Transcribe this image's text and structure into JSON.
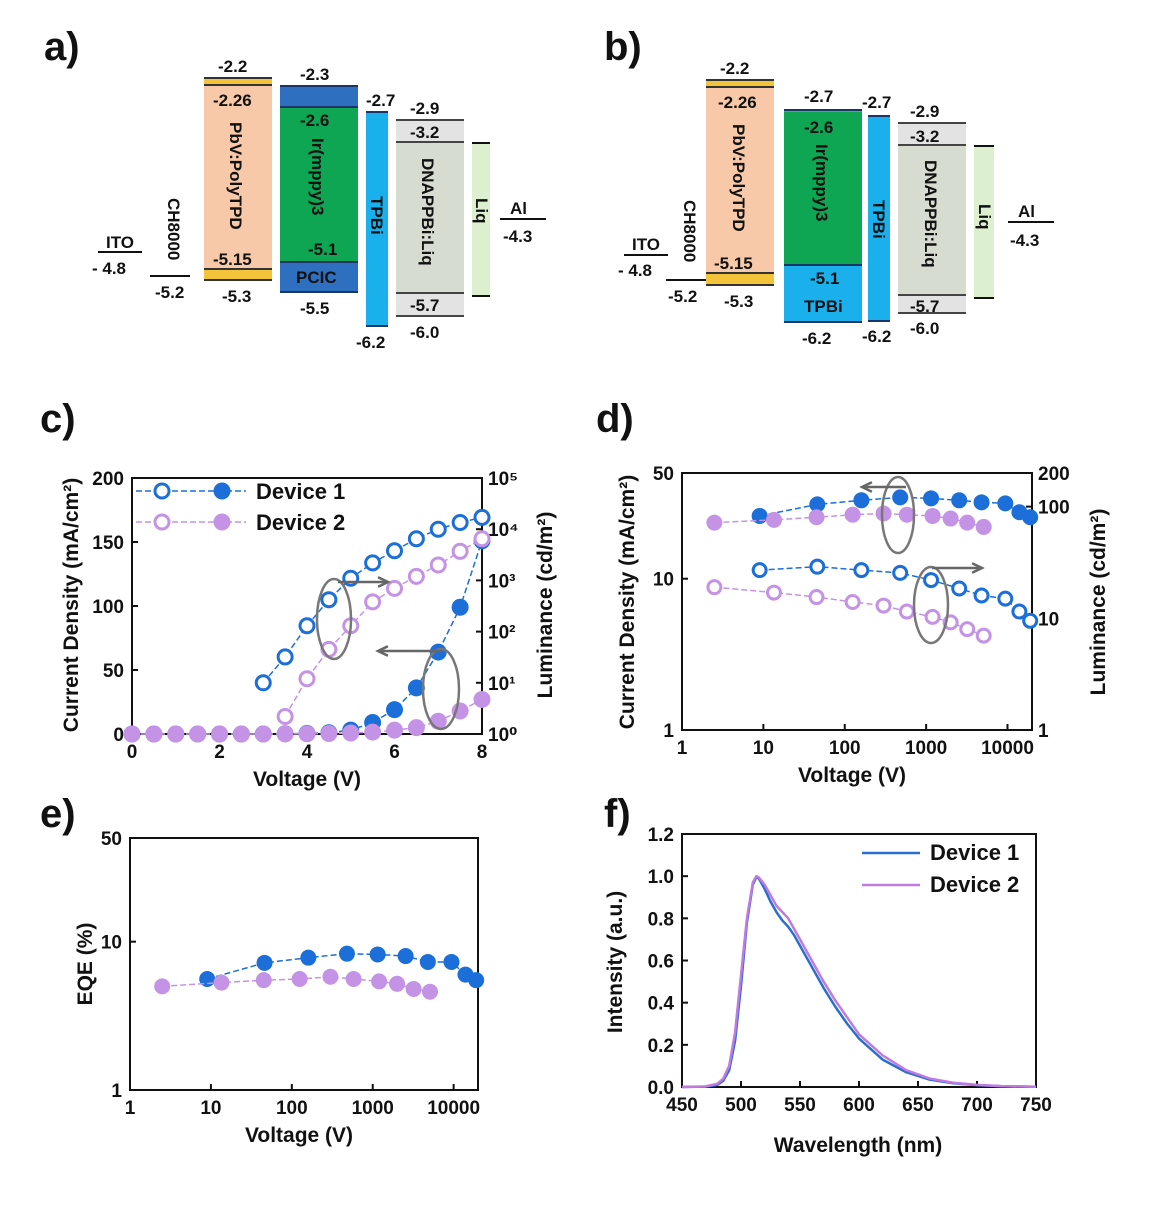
{
  "panel_labels": [
    "a)",
    "b)",
    "c)",
    "d)",
    "e)",
    "f)"
  ],
  "energy_diagrams": [
    {
      "panel": "a)",
      "layers": [
        {
          "label": "ITO",
          "color": "#ffffff",
          "levels": [
            "- 4.8"
          ]
        },
        {
          "label": "CH8000",
          "color": "#ffffff",
          "levels": [
            "-5.2"
          ]
        },
        {
          "label": "PbV:PolyTPD",
          "color": "#f7c9a8",
          "stripe": "#f3c33a",
          "levels": [
            "-2.2",
            "-2.26",
            "-5.15",
            "-5.3"
          ]
        },
        {
          "label": "Ir(mppy)3",
          "color": "#0ea553",
          "levels": [
            "-2.6",
            "-5.1"
          ]
        },
        {
          "label": "PCIC",
          "color": "#2e6fc0",
          "levels": [
            "-2.3",
            "-5.5"
          ]
        },
        {
          "label": "TPBi",
          "color": "#1ab0ec",
          "levels": [
            "-2.7",
            "-6.2"
          ]
        },
        {
          "label": "DNAPPBi:Liq",
          "color": "#d7dcd1",
          "stripe": "#e3e3e3",
          "levels": [
            "-2.9",
            "-3.2",
            "-5.7",
            "-6.0"
          ]
        },
        {
          "label": "Liq",
          "color": "#dcefcf",
          "levels": []
        },
        {
          "label": "Al",
          "color": "#ffffff",
          "levels": [
            "-4.3"
          ]
        }
      ]
    },
    {
      "panel": "b)",
      "layers": [
        {
          "label": "ITO",
          "color": "#ffffff",
          "levels": [
            "- 4.8"
          ]
        },
        {
          "label": "CH8000",
          "color": "#ffffff",
          "levels": [
            "-5.2"
          ]
        },
        {
          "label": "PbV:PolyTPD",
          "color": "#f7c9a8",
          "stripe": "#f3c33a",
          "levels": [
            "-2.2",
            "-2.26",
            "-5.15",
            "-5.3"
          ]
        },
        {
          "label": "Ir(mppy)3",
          "color": "#0ea553",
          "levels": [
            "-2.7",
            "-2.6",
            "-5.1"
          ]
        },
        {
          "label": "TPBi",
          "color": "#1ab0ec",
          "levels": [
            "-6.2"
          ]
        },
        {
          "label": "TPBi",
          "color": "#1ab0ec",
          "levels": [
            "-2.7",
            "-6.2"
          ]
        },
        {
          "label": "DNAPPBi:Liq",
          "color": "#d7dcd1",
          "stripe": "#e3e3e3",
          "levels": [
            "-2.9",
            "-3.2",
            "-5.7",
            "-6.0"
          ]
        },
        {
          "label": "Liq",
          "color": "#dcefcf",
          "levels": []
        },
        {
          "label": "Al",
          "color": "#ffffff",
          "levels": [
            "-4.3"
          ]
        }
      ]
    }
  ],
  "chart_data": [
    {
      "panel": "c)",
      "type": "scatter",
      "xlabel": "Voltage (V)",
      "ylabel": "Current Density (mA/cm²)",
      "ylabel_right": "Luminance (cd/m²)",
      "xlim": [
        0,
        8
      ],
      "ylim": [
        0,
        200
      ],
      "ylim_right": [
        1,
        100000
      ],
      "yscale_right": "log",
      "xticks": [
        "0",
        "2",
        "4",
        "6",
        "8"
      ],
      "yticks": [
        "0",
        "50",
        "100",
        "150",
        "200"
      ],
      "yticks_right": [
        "10⁰",
        "10¹",
        "10²",
        "10³",
        "10⁴",
        "10⁵"
      ],
      "legend": [
        "Device 1",
        "Device 2"
      ],
      "legend_position": "top-left",
      "series": [
        {
          "name": "Device 1",
          "axis": "left",
          "marker": "filled",
          "color": "#1c6fd8",
          "x": [
            0,
            0.5,
            1,
            1.5,
            2,
            2.5,
            3,
            3.5,
            4,
            4.5,
            5,
            5.5,
            6,
            6.5,
            7,
            7.5,
            8
          ],
          "y": [
            0,
            0,
            0,
            0,
            0,
            0,
            0,
            0.2,
            0.5,
            1,
            3,
            9,
            19,
            36,
            64,
            99,
            151
          ]
        },
        {
          "name": "Device 1",
          "axis": "right",
          "marker": "open",
          "color": "#1c6fd8",
          "x": [
            3,
            3.5,
            4,
            4.5,
            5,
            5.5,
            6,
            6.5,
            7,
            7.5,
            8
          ],
          "y": [
            10,
            32,
            130,
            420,
            1100,
            2200,
            3800,
            6500,
            10000,
            13500,
            17000
          ]
        },
        {
          "name": "Device 2",
          "axis": "left",
          "marker": "filled",
          "color": "#c493e6",
          "x": [
            0,
            0.5,
            1,
            1.5,
            2,
            2.5,
            3,
            3.5,
            4,
            4.5,
            5,
            5.5,
            6,
            6.5,
            7,
            7.5,
            8
          ],
          "y": [
            0,
            0,
            0,
            0,
            0,
            0,
            0,
            0.1,
            0.2,
            0.4,
            0.8,
            1.5,
            3,
            5,
            10,
            18,
            27
          ]
        },
        {
          "name": "Device 2",
          "axis": "right",
          "marker": "open",
          "color": "#c493e6",
          "x": [
            3.5,
            4,
            4.5,
            5,
            5.5,
            6,
            6.5,
            7,
            7.5,
            8
          ],
          "y": [
            2.2,
            12,
            45,
            130,
            380,
            700,
            1200,
            2000,
            3700,
            6500
          ]
        }
      ],
      "annotations": [
        "arrow-right",
        "arrow-left"
      ]
    },
    {
      "panel": "d)",
      "type": "scatter",
      "xlabel": "Voltage (V)",
      "ylabel": "Current Density (mA/cm²)",
      "ylabel_right": "Luminance (cd/m²)",
      "xscale": "log",
      "yscale": "log",
      "xlim": [
        1,
        20000
      ],
      "ylim": [
        1,
        50
      ],
      "ylim_right": [
        1,
        200
      ],
      "xticks": [
        "1",
        "10",
        "100",
        "1000",
        "10000"
      ],
      "yticks": [
        "1",
        "10",
        "50"
      ],
      "yticks_right": [
        "1",
        "10",
        "100",
        "200"
      ],
      "series": [
        {
          "name": "Device 1",
          "axis": "left",
          "marker": "filled",
          "color": "#1c6fd8",
          "x": [
            9,
            46,
            160,
            480,
            1150,
            2550,
            4800,
            9400,
            14000,
            19000
          ],
          "y": [
            26,
            31,
            33,
            34.5,
            34,
            33,
            32,
            31.5,
            27.5,
            25.5
          ]
        },
        {
          "name": "Device 2",
          "axis": "left",
          "marker": "filled",
          "color": "#c493e6",
          "x": [
            2.5,
            13.5,
            45,
            125,
            300,
            580,
            1200,
            2000,
            3200,
            5100
          ],
          "y": [
            23.5,
            24.5,
            25.5,
            26.5,
            27,
            26.5,
            26,
            25,
            23.5,
            22
          ]
        },
        {
          "name": "Device 1",
          "axis": "right",
          "marker": "open",
          "color": "#1c6fd8",
          "x": [
            9,
            46,
            160,
            480,
            1150,
            2550,
            4800,
            9400,
            14000,
            19000
          ],
          "y": [
            27,
            29,
            27,
            25.5,
            22,
            18.5,
            16,
            15,
            11.5,
            9.5
          ]
        },
        {
          "name": "Device 2",
          "axis": "right",
          "marker": "open",
          "color": "#c493e6",
          "x": [
            2.5,
            13.5,
            45,
            125,
            300,
            580,
            1200,
            2000,
            3200,
            5100
          ],
          "y": [
            19,
            17,
            15.5,
            14,
            13,
            11.5,
            10.3,
            9.2,
            8,
            7
          ]
        }
      ],
      "annotations": [
        "arrow-left",
        "arrow-right"
      ]
    },
    {
      "panel": "e)",
      "type": "scatter",
      "xlabel": "Voltage (V)",
      "ylabel": "EQE (%)",
      "xscale": "log",
      "yscale": "log",
      "xlim": [
        1,
        20000
      ],
      "ylim": [
        1,
        50
      ],
      "xticks": [
        "1",
        "10",
        "100",
        "1000",
        "10000"
      ],
      "yticks": [
        "1",
        "10",
        "50"
      ],
      "series": [
        {
          "name": "Device 1",
          "marker": "filled",
          "color": "#1c6fd8",
          "x": [
            9,
            46,
            160,
            480,
            1150,
            2550,
            4800,
            9400,
            14000,
            19000
          ],
          "y": [
            5.6,
            7.2,
            7.8,
            8.3,
            8.2,
            8.0,
            7.3,
            7.3,
            6.0,
            5.5
          ]
        },
        {
          "name": "Device 2",
          "marker": "filled",
          "color": "#c493e6",
          "x": [
            2.5,
            13.5,
            45,
            125,
            300,
            580,
            1200,
            2000,
            3200,
            5100
          ],
          "y": [
            5.0,
            5.3,
            5.5,
            5.6,
            5.8,
            5.6,
            5.4,
            5.2,
            4.8,
            4.6
          ]
        }
      ]
    },
    {
      "panel": "f)",
      "type": "line",
      "xlabel": "Wavelength (nm)",
      "ylabel": "Intensity (a.u.)",
      "xlim": [
        450,
        750
      ],
      "ylim": [
        0,
        1.2
      ],
      "xticks": [
        "450",
        "500",
        "550",
        "600",
        "650",
        "700",
        "750"
      ],
      "yticks": [
        "0.0",
        "0.2",
        "0.4",
        "0.6",
        "0.8",
        "1.0",
        "1.2"
      ],
      "legend": [
        "Device 1",
        "Device 2"
      ],
      "legend_position": "top-right",
      "series": [
        {
          "name": "Device 1",
          "color": "#2a6fd0",
          "x": [
            450,
            470,
            480,
            485,
            490,
            495,
            500,
            505,
            510,
            513,
            515,
            520,
            525,
            530,
            535,
            540,
            545,
            550,
            560,
            570,
            580,
            590,
            600,
            620,
            640,
            660,
            680,
            700,
            720,
            750
          ],
          "y": [
            0,
            0.002,
            0.01,
            0.03,
            0.08,
            0.22,
            0.48,
            0.78,
            0.96,
            0.995,
            0.99,
            0.94,
            0.88,
            0.83,
            0.79,
            0.76,
            0.72,
            0.67,
            0.57,
            0.47,
            0.38,
            0.3,
            0.23,
            0.13,
            0.07,
            0.035,
            0.018,
            0.009,
            0.004,
            0.001
          ]
        },
        {
          "name": "Device 2",
          "color": "#c07ae0",
          "x": [
            450,
            470,
            480,
            485,
            490,
            495,
            500,
            505,
            510,
            513,
            515,
            520,
            525,
            530,
            535,
            540,
            545,
            550,
            560,
            570,
            580,
            590,
            600,
            620,
            640,
            660,
            680,
            700,
            720,
            750
          ],
          "y": [
            0,
            0.003,
            0.015,
            0.04,
            0.1,
            0.26,
            0.53,
            0.8,
            0.97,
            1.0,
            0.995,
            0.96,
            0.91,
            0.86,
            0.83,
            0.8,
            0.75,
            0.7,
            0.6,
            0.5,
            0.41,
            0.33,
            0.25,
            0.15,
            0.08,
            0.04,
            0.02,
            0.01,
            0.004,
            0.001
          ]
        }
      ]
    }
  ]
}
